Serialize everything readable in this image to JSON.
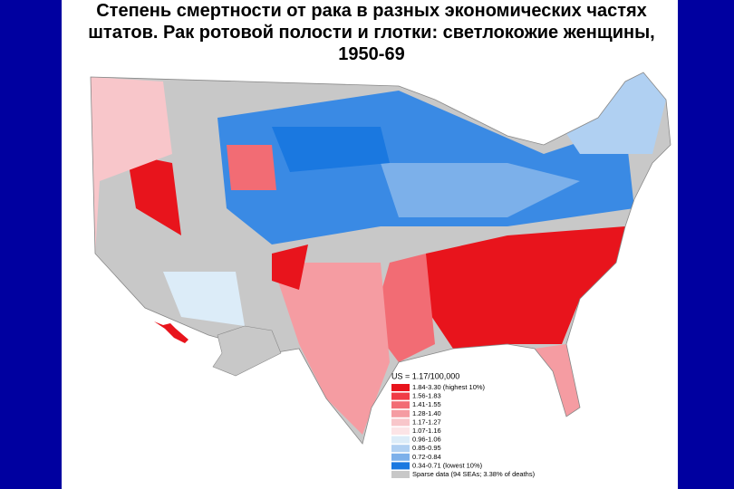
{
  "title": "Степень смертности от рака в разных экономических частях штатов. Рак ротовой полости и глотки: светлокожие женщины, 1950-69",
  "legend": {
    "summary": "US = 1.17/100,000",
    "items": [
      {
        "label": "1.84-3.30 (highest 10%)",
        "color": "#e8141c"
      },
      {
        "label": "1.56-1.83",
        "color": "#f03c46"
      },
      {
        "label": "1.41-1.55",
        "color": "#f26c74"
      },
      {
        "label": "1.28-1.40",
        "color": "#f59ca2"
      },
      {
        "label": "1.17-1.27",
        "color": "#f8c6ca"
      },
      {
        "label": "1.07-1.16",
        "color": "#fce4e6"
      },
      {
        "label": "0.96-1.06",
        "color": "#dcecf8"
      },
      {
        "label": "0.85-0.95",
        "color": "#b0d0f2"
      },
      {
        "label": "0.72-0.84",
        "color": "#7cb0ea"
      },
      {
        "label": "0.34-0.71 (lowest 10%)",
        "color": "#1a78e0"
      },
      {
        "label": "Sparse data (94 SEAs; 3.38% of deaths)",
        "color": "#c8c8c8"
      }
    ]
  }
}
